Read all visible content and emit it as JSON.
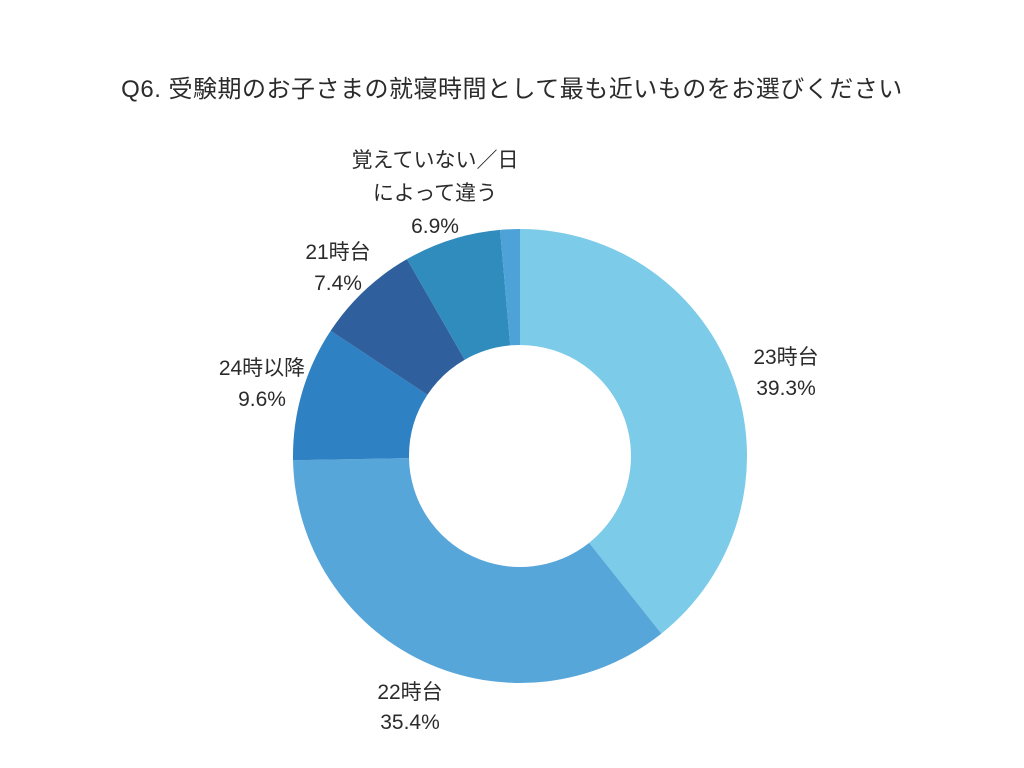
{
  "chart_data": {
    "type": "donut",
    "title": "Q6. 受験期のお子さまの就寝時間として最も近いものをお選びください",
    "unit": "%",
    "start_angle": "top",
    "direction": "clockwise",
    "inner_radius_ratio": 0.49,
    "legend": "none",
    "labels_position": "outside",
    "background_color": "#ffffff",
    "slices": [
      {
        "id": "23h",
        "label": "23時台",
        "value": 39.3,
        "pct_label": "39.3%",
        "color": "#7CCBE8"
      },
      {
        "id": "22h",
        "label": "22時台",
        "value": 35.4,
        "pct_label": "35.4%",
        "color": "#57A6DA"
      },
      {
        "id": "after-24h",
        "label": "24時以降",
        "value": 9.6,
        "pct_label": "9.6%",
        "color": "#2E81C2"
      },
      {
        "id": "21h",
        "label": "21時台",
        "value": 7.4,
        "pct_label": "7.4%",
        "color": "#2F5F9C"
      },
      {
        "id": "dont-remember",
        "label": "覚えていない／日\nによって違う",
        "value": 6.9,
        "pct_label": "6.9%",
        "color": "#2F8CBD"
      },
      {
        "id": "unlabeled",
        "label": "",
        "value": 1.4,
        "pct_label": "",
        "color": "#4DA2D8"
      }
    ]
  }
}
